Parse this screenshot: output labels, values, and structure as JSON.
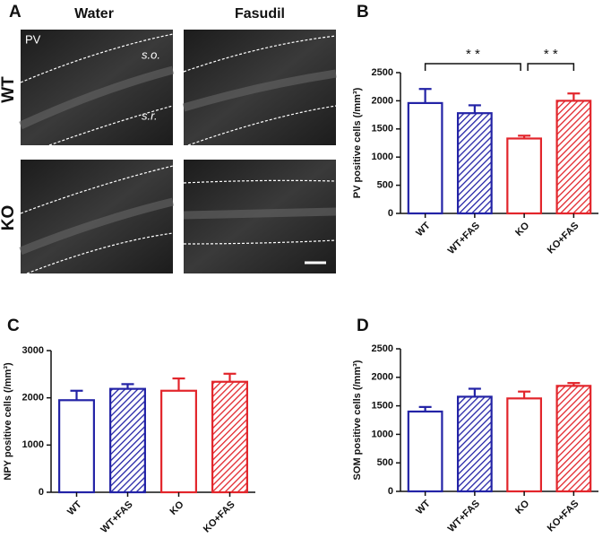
{
  "panel_a": {
    "letter": "A",
    "columns": [
      "Water",
      "Fasudil"
    ],
    "rows": [
      "WT",
      "KO"
    ],
    "stain": "PV",
    "layers": [
      "s.o.",
      "s.r."
    ]
  },
  "chart_data": [
    {
      "type": "bar",
      "panel": "B",
      "ylabel": "PV positive cells (/mm³)",
      "categories": [
        "WT",
        "WT+FAS",
        "KO",
        "KO+FAS"
      ],
      "values": [
        1960,
        1780,
        1330,
        2000
      ],
      "errors": [
        250,
        140,
        50,
        130
      ],
      "colors": [
        "#2323a6",
        "#2323a6",
        "#e2252b",
        "#e2252b"
      ],
      "hatched": [
        false,
        true,
        false,
        true
      ],
      "ylim": [
        0,
        2500
      ],
      "yticks": [
        0,
        500,
        1000,
        1500,
        2000,
        2500
      ],
      "significance": [
        {
          "from": 0,
          "to": 2,
          "label": "* *"
        },
        {
          "from": 2,
          "to": 3,
          "label": "* *"
        }
      ]
    },
    {
      "type": "bar",
      "panel": "C",
      "ylabel": "NPY positive cells (/mm³)",
      "categories": [
        "WT",
        "WT+FAS",
        "KO",
        "KO+FAS"
      ],
      "values": [
        1950,
        2190,
        2150,
        2340
      ],
      "errors": [
        200,
        100,
        260,
        170
      ],
      "colors": [
        "#2323a6",
        "#2323a6",
        "#e2252b",
        "#e2252b"
      ],
      "hatched": [
        false,
        true,
        false,
        true
      ],
      "ylim": [
        0,
        3000
      ],
      "yticks": [
        0,
        1000,
        2000,
        3000
      ]
    },
    {
      "type": "bar",
      "panel": "D",
      "ylabel": "SOM positive cells (/mm³)",
      "categories": [
        "WT",
        "WT+FAS",
        "KO",
        "KO+FAS"
      ],
      "values": [
        1400,
        1660,
        1630,
        1850
      ],
      "errors": [
        80,
        140,
        120,
        50
      ],
      "colors": [
        "#2323a6",
        "#2323a6",
        "#e2252b",
        "#e2252b"
      ],
      "hatched": [
        false,
        true,
        false,
        true
      ],
      "ylim": [
        0,
        2500
      ],
      "yticks": [
        0,
        500,
        1000,
        1500,
        2000,
        2500
      ]
    }
  ]
}
